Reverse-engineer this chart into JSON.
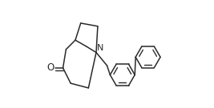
{
  "bg_color": "#ffffff",
  "line_color": "#2a2a2a",
  "line_width": 1.1,
  "figsize": [
    2.67,
    1.35
  ],
  "dpi": 100
}
